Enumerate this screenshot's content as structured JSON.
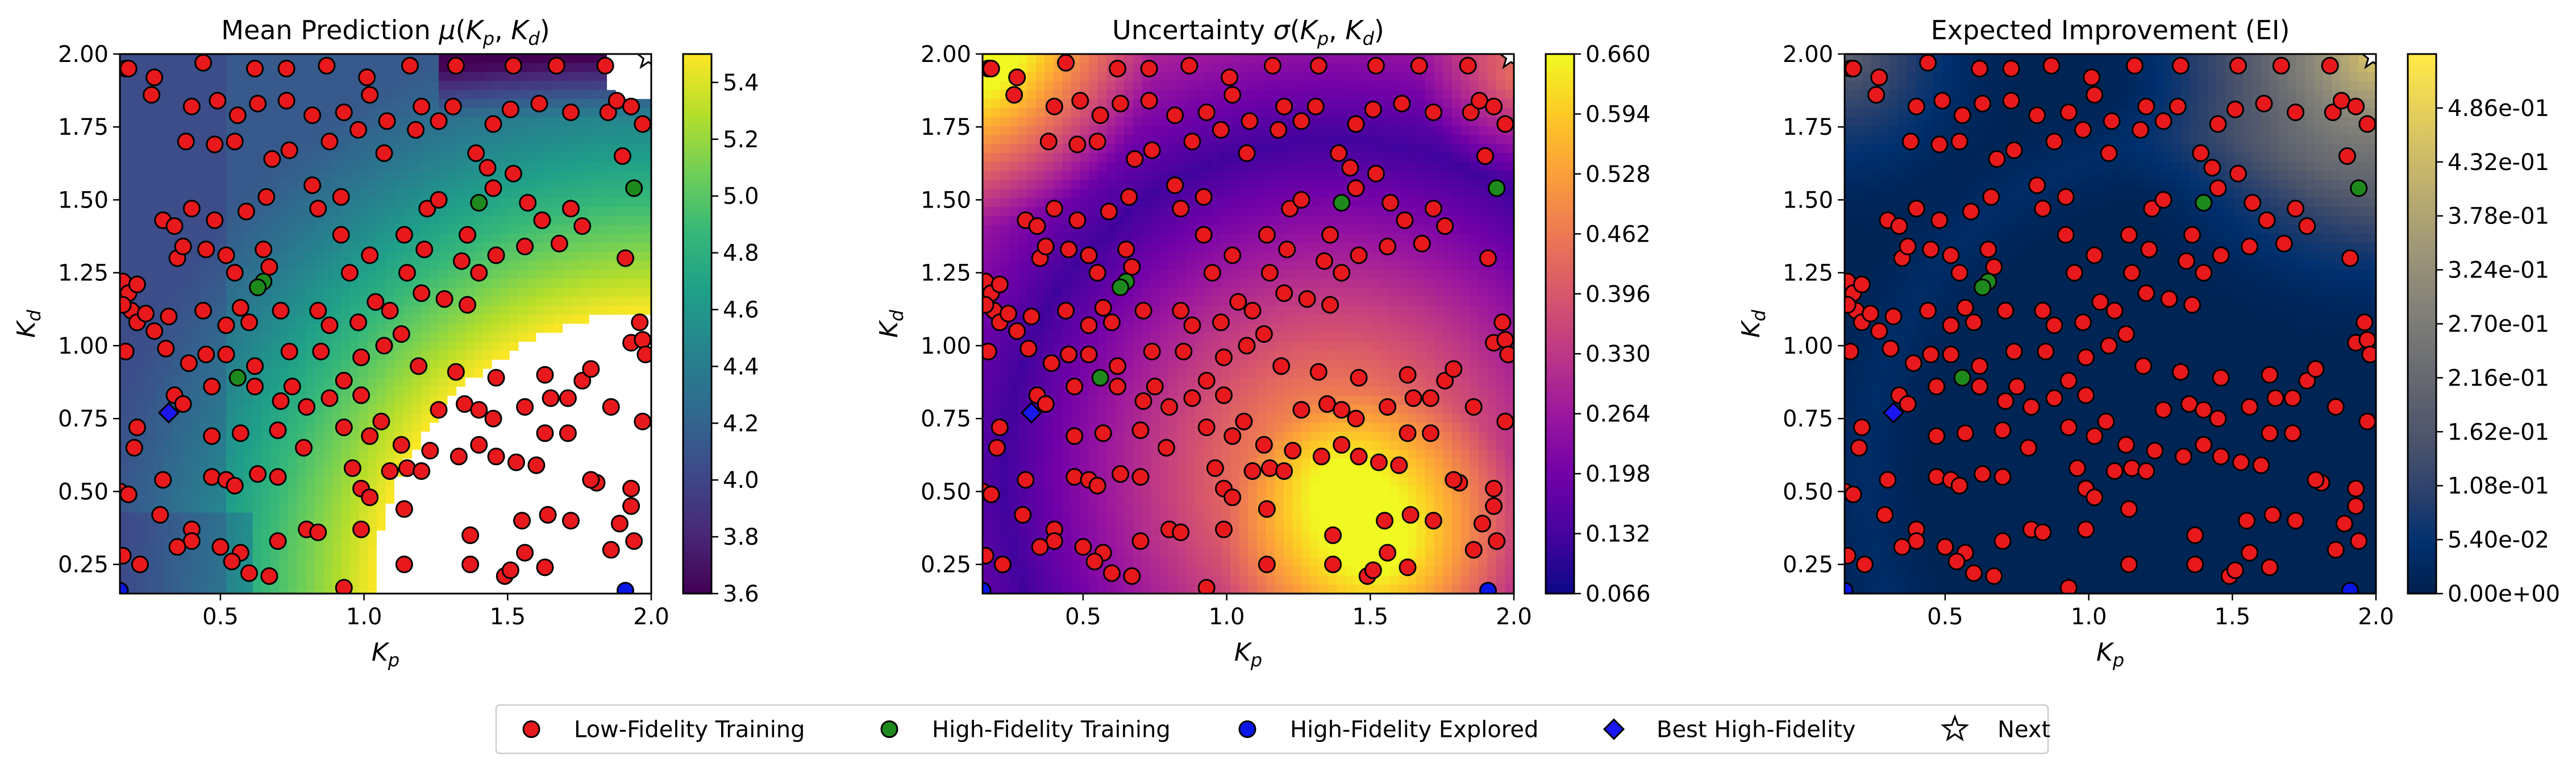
{
  "chart_data": [
    {
      "type": "heatmap",
      "title": "Mean Prediction μ(Kp, Kd)",
      "title_parts": {
        "prefix": "Mean Prediction ",
        "var": "μ",
        "args": "(Kp, Kd)"
      },
      "xlabel": "Kp",
      "ylabel": "Kd",
      "xlim": [
        0.15,
        2.0
      ],
      "ylim": [
        0.15,
        2.0
      ],
      "xticks": [
        "0.5",
        "1.0",
        "1.5",
        "2.0"
      ],
      "yticks": [
        "0.25",
        "0.50",
        "0.75",
        "1.00",
        "1.25",
        "1.50",
        "1.75",
        "2.00"
      ],
      "colormap": "viridis",
      "colorbar_range": [
        3.6,
        5.5
      ],
      "colorbar_ticks": [
        "3.6",
        "3.8",
        "4.0",
        "4.2",
        "4.4",
        "4.6",
        "4.8",
        "5.0",
        "5.2",
        "5.4"
      ],
      "note_white_region": "values above colorbar max rendered white"
    },
    {
      "type": "heatmap",
      "title": "Uncertainty σ(Kp, Kd)",
      "title_parts": {
        "prefix": "Uncertainty ",
        "var": "σ",
        "args": "(Kp, Kd)"
      },
      "xlabel": "Kp",
      "ylabel": "Kd",
      "xlim": [
        0.15,
        2.0
      ],
      "ylim": [
        0.15,
        2.0
      ],
      "xticks": [
        "0.5",
        "1.0",
        "1.5",
        "2.0"
      ],
      "yticks": [
        "0.25",
        "0.50",
        "0.75",
        "1.00",
        "1.25",
        "1.50",
        "1.75",
        "2.00"
      ],
      "colormap": "plasma",
      "colorbar_range": [
        0.066,
        0.66
      ],
      "colorbar_ticks": [
        "0.066",
        "0.132",
        "0.198",
        "0.264",
        "0.330",
        "0.396",
        "0.462",
        "0.528",
        "0.594",
        "0.660"
      ]
    },
    {
      "type": "heatmap",
      "title": "Expected Improvement (EI)",
      "title_parts": {
        "prefix": "Expected Improvement (EI)",
        "var": "",
        "args": ""
      },
      "xlabel": "Kp",
      "ylabel": "Kd",
      "xlim": [
        0.15,
        2.0
      ],
      "ylim": [
        0.15,
        2.0
      ],
      "xticks": [
        "0.5",
        "1.0",
        "1.5",
        "2.0"
      ],
      "yticks": [
        "0.25",
        "0.50",
        "0.75",
        "1.00",
        "1.25",
        "1.50",
        "1.75",
        "2.00"
      ],
      "colormap": "cividis",
      "colorbar_range": [
        0.0,
        0.54
      ],
      "colorbar_ticks": [
        "0.00e+00",
        "5.40e-02",
        "1.08e-01",
        "1.62e-01",
        "2.16e-01",
        "2.70e-01",
        "3.24e-01",
        "3.78e-01",
        "4.32e-01",
        "4.86e-01"
      ]
    }
  ],
  "scatter_series": {
    "low_fidelity": {
      "name": "Low-Fidelity Training",
      "color": "#e8191c",
      "points": [
        [
          0.17,
          1.95
        ],
        [
          0.27,
          1.92
        ],
        [
          0.26,
          1.86
        ],
        [
          0.44,
          1.97
        ],
        [
          0.62,
          1.95
        ],
        [
          0.73,
          1.95
        ],
        [
          0.87,
          1.96
        ],
        [
          1.01,
          1.92
        ],
        [
          1.16,
          1.96
        ],
        [
          1.32,
          1.96
        ],
        [
          1.52,
          1.96
        ],
        [
          1.67,
          1.96
        ],
        [
          1.84,
          1.96
        ],
        [
          0.18,
          1.95
        ],
        [
          0.4,
          1.82
        ],
        [
          0.49,
          1.84
        ],
        [
          0.56,
          1.79
        ],
        [
          0.63,
          1.83
        ],
        [
          0.73,
          1.84
        ],
        [
          0.82,
          1.79
        ],
        [
          0.93,
          1.8
        ],
        [
          1.02,
          1.86
        ],
        [
          1.08,
          1.77
        ],
        [
          1.18,
          1.74
        ],
        [
          1.2,
          1.82
        ],
        [
          1.26,
          1.77
        ],
        [
          1.31,
          1.82
        ],
        [
          1.45,
          1.76
        ],
        [
          1.51,
          1.81
        ],
        [
          1.61,
          1.83
        ],
        [
          1.72,
          1.8
        ],
        [
          1.85,
          1.8
        ],
        [
          1.88,
          1.84
        ],
        [
          1.93,
          1.82
        ],
        [
          1.97,
          1.76
        ],
        [
          0.38,
          1.7
        ],
        [
          0.48,
          1.69
        ],
        [
          0.55,
          1.7
        ],
        [
          0.68,
          1.64
        ],
        [
          0.74,
          1.67
        ],
        [
          0.88,
          1.7
        ],
        [
          0.98,
          1.74
        ],
        [
          1.07,
          1.66
        ],
        [
          1.39,
          1.66
        ],
        [
          1.43,
          1.61
        ],
        [
          1.52,
          1.59
        ],
        [
          1.9,
          1.65
        ],
        [
          0.3,
          1.43
        ],
        [
          0.34,
          1.41
        ],
        [
          0.4,
          1.47
        ],
        [
          0.48,
          1.43
        ],
        [
          0.59,
          1.46
        ],
        [
          0.66,
          1.51
        ],
        [
          0.82,
          1.55
        ],
        [
          0.92,
          1.51
        ],
        [
          0.92,
          1.38
        ],
        [
          0.84,
          1.47
        ],
        [
          1.14,
          1.38
        ],
        [
          1.36,
          1.38
        ],
        [
          1.22,
          1.47
        ],
        [
          1.26,
          1.5
        ],
        [
          1.45,
          1.54
        ],
        [
          1.57,
          1.49
        ],
        [
          1.62,
          1.43
        ],
        [
          1.72,
          1.47
        ],
        [
          1.76,
          1.41
        ],
        [
          0.16,
          1.22
        ],
        [
          0.18,
          1.18
        ],
        [
          0.21,
          1.21
        ],
        [
          0.35,
          1.3
        ],
        [
          0.37,
          1.34
        ],
        [
          0.45,
          1.33
        ],
        [
          0.52,
          1.31
        ],
        [
          0.55,
          1.25
        ],
        [
          0.65,
          1.33
        ],
        [
          0.67,
          1.27
        ],
        [
          0.95,
          1.25
        ],
        [
          1.02,
          1.31
        ],
        [
          1.15,
          1.25
        ],
        [
          1.21,
          1.33
        ],
        [
          1.34,
          1.29
        ],
        [
          1.4,
          1.25
        ],
        [
          1.46,
          1.31
        ],
        [
          1.56,
          1.34
        ],
        [
          1.68,
          1.35
        ],
        [
          1.91,
          1.3
        ],
        [
          0.19,
          1.12
        ],
        [
          0.21,
          1.08
        ],
        [
          0.24,
          1.11
        ],
        [
          0.16,
          1.14
        ],
        [
          0.32,
          1.1
        ],
        [
          0.27,
          1.05
        ],
        [
          0.44,
          1.12
        ],
        [
          0.52,
          1.07
        ],
        [
          0.57,
          1.13
        ],
        [
          0.6,
          1.08
        ],
        [
          0.71,
          1.12
        ],
        [
          0.84,
          1.12
        ],
        [
          0.88,
          1.07
        ],
        [
          0.98,
          1.08
        ],
        [
          1.04,
          1.15
        ],
        [
          1.09,
          1.12
        ],
        [
          1.2,
          1.18
        ],
        [
          1.28,
          1.16
        ],
        [
          1.36,
          1.14
        ],
        [
          1.96,
          1.08
        ],
        [
          0.17,
          0.98
        ],
        [
          0.31,
          0.99
        ],
        [
          0.39,
          0.94
        ],
        [
          0.45,
          0.97
        ],
        [
          0.52,
          0.97
        ],
        [
          0.62,
          0.93
        ],
        [
          0.74,
          0.98
        ],
        [
          0.85,
          0.98
        ],
        [
          0.99,
          0.96
        ],
        [
          1.07,
          1.0
        ],
        [
          1.13,
          1.04
        ],
        [
          1.93,
          1.01
        ],
        [
          1.97,
          1.02
        ],
        [
          1.98,
          0.97
        ],
        [
          0.34,
          0.83
        ],
        [
          0.37,
          0.8
        ],
        [
          0.47,
          0.86
        ],
        [
          0.62,
          0.86
        ],
        [
          0.71,
          0.81
        ],
        [
          0.75,
          0.86
        ],
        [
          0.8,
          0.79
        ],
        [
          0.88,
          0.82
        ],
        [
          0.93,
          0.88
        ],
        [
          0.99,
          0.83
        ],
        [
          1.19,
          0.93
        ],
        [
          1.32,
          0.91
        ],
        [
          1.46,
          0.89
        ],
        [
          1.63,
          0.9
        ],
        [
          1.76,
          0.88
        ],
        [
          1.79,
          0.92
        ],
        [
          0.2,
          0.65
        ],
        [
          0.21,
          0.72
        ],
        [
          0.47,
          0.69
        ],
        [
          0.57,
          0.7
        ],
        [
          0.7,
          0.71
        ],
        [
          0.79,
          0.65
        ],
        [
          0.93,
          0.72
        ],
        [
          1.02,
          0.69
        ],
        [
          1.06,
          0.74
        ],
        [
          1.13,
          0.66
        ],
        [
          1.26,
          0.78
        ],
        [
          1.35,
          0.8
        ],
        [
          1.4,
          0.78
        ],
        [
          1.45,
          0.75
        ],
        [
          1.56,
          0.79
        ],
        [
          1.65,
          0.82
        ],
        [
          1.71,
          0.82
        ],
        [
          1.86,
          0.79
        ],
        [
          1.97,
          0.74
        ],
        [
          0.15,
          0.5
        ],
        [
          0.18,
          0.49
        ],
        [
          0.3,
          0.54
        ],
        [
          0.47,
          0.55
        ],
        [
          0.52,
          0.54
        ],
        [
          0.55,
          0.52
        ],
        [
          0.63,
          0.56
        ],
        [
          0.7,
          0.55
        ],
        [
          0.96,
          0.58
        ],
        [
          0.99,
          0.51
        ],
        [
          1.02,
          0.48
        ],
        [
          1.09,
          0.57
        ],
        [
          1.15,
          0.58
        ],
        [
          1.2,
          0.57
        ],
        [
          1.23,
          0.64
        ],
        [
          1.33,
          0.62
        ],
        [
          1.4,
          0.66
        ],
        [
          1.46,
          0.62
        ],
        [
          1.53,
          0.6
        ],
        [
          1.6,
          0.59
        ],
        [
          1.63,
          0.7
        ],
        [
          1.71,
          0.7
        ],
        [
          1.81,
          0.53
        ],
        [
          1.79,
          0.54
        ],
        [
          1.93,
          0.51
        ],
        [
          0.29,
          0.42
        ],
        [
          0.4,
          0.37
        ],
        [
          0.4,
          0.33
        ],
        [
          0.5,
          0.31
        ],
        [
          0.57,
          0.29
        ],
        [
          0.7,
          0.33
        ],
        [
          0.8,
          0.37
        ],
        [
          0.84,
          0.36
        ],
        [
          0.99,
          0.37
        ],
        [
          1.14,
          0.44
        ],
        [
          1.37,
          0.35
        ],
        [
          1.55,
          0.4
        ],
        [
          1.64,
          0.42
        ],
        [
          1.72,
          0.4
        ],
        [
          1.89,
          0.39
        ],
        [
          1.93,
          0.45
        ],
        [
          1.94,
          0.33
        ],
        [
          0.16,
          0.28
        ],
        [
          0.22,
          0.25
        ],
        [
          0.35,
          0.31
        ],
        [
          0.54,
          0.26
        ],
        [
          0.6,
          0.22
        ],
        [
          0.67,
          0.21
        ],
        [
          0.93,
          0.17
        ],
        [
          1.14,
          0.25
        ],
        [
          1.37,
          0.25
        ],
        [
          1.49,
          0.21
        ],
        [
          1.51,
          0.23
        ],
        [
          1.56,
          0.29
        ],
        [
          1.63,
          0.24
        ],
        [
          1.86,
          0.3
        ]
      ]
    },
    "high_fidelity_training": {
      "name": "High-Fidelity Training",
      "color": "#1e8a1e",
      "points": [
        [
          1.4,
          1.49
        ],
        [
          0.65,
          1.22
        ],
        [
          0.63,
          1.2
        ],
        [
          1.94,
          1.54
        ],
        [
          0.56,
          0.89
        ]
      ]
    },
    "high_fidelity_explored": {
      "name": "High-Fidelity Explored",
      "color": "#0a16e6",
      "points": [
        [
          1.91,
          0.16
        ],
        [
          0.15,
          0.16
        ]
      ]
    },
    "best_high_fidelity": {
      "name": "Best High-Fidelity",
      "color": "#1a17f0",
      "points": [
        [
          0.32,
          0.77
        ]
      ]
    },
    "next": {
      "name": "Next",
      "points": [
        [
          1.99,
          1.99
        ]
      ]
    }
  },
  "legend": {
    "placement": "bottom-center",
    "items": [
      {
        "label": "Low-Fidelity Training",
        "marker": "circle",
        "color": "#e8191c"
      },
      {
        "label": "High-Fidelity Training",
        "marker": "circle",
        "color": "#1e8a1e"
      },
      {
        "label": "High-Fidelity Explored",
        "marker": "circle",
        "color": "#0a16e6"
      },
      {
        "label": "Best High-Fidelity",
        "marker": "diamond",
        "color": "#1a17f0"
      },
      {
        "label": "Next",
        "marker": "star",
        "color": "#ffffff"
      }
    ]
  }
}
